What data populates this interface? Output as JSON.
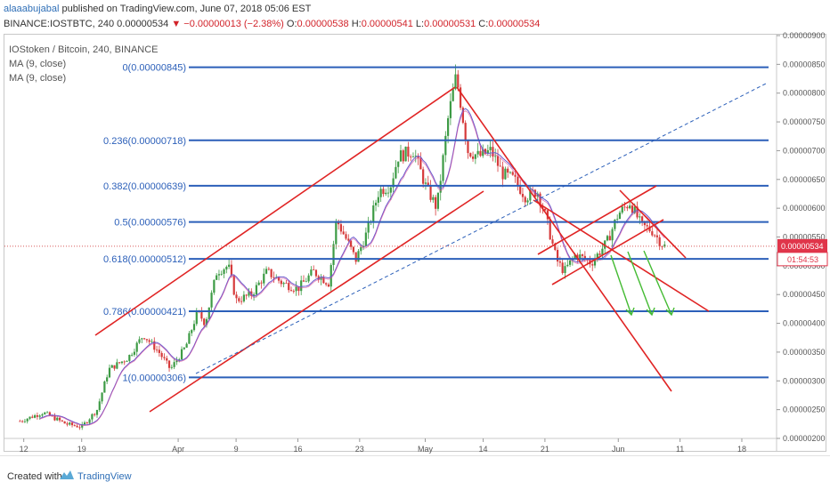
{
  "header": {
    "author": "alaaabujabal",
    "published_text": "published on TradingView.com, June 07, 2018 05:06 EST",
    "symbol_line": "BINANCE:IOSTBTC, 240",
    "last": "0.00000534",
    "down_arrow": "▼",
    "change": "−0.00000013 (−2.38%)",
    "o_label": "O:",
    "o_value": "0.00000538",
    "h_label": "H:",
    "h_value": "0.00000541",
    "l_label": "L:",
    "l_value": "0.00000531",
    "c_label": "C:",
    "c_value": "0.00000534"
  },
  "legend": {
    "title": "IOStoken / Bitcoin, 240, BINANCE",
    "ma1": "MA (9, close)",
    "ma2": "MA (9, close)"
  },
  "chart_data": {
    "type": "candlestick",
    "pair": "IOSTBTC",
    "timeframe": "240",
    "y_axis": {
      "min": 2e-06,
      "max": 9e-06,
      "ticks": [
        "0.00000200",
        "0.00000250",
        "0.00000300",
        "0.00000350",
        "0.00000400",
        "0.00000450",
        "0.00000500",
        "0.00000550",
        "0.00000600",
        "0.00000650",
        "0.00000700",
        "0.00000750",
        "0.00000800",
        "0.00000850",
        "0.00000900"
      ]
    },
    "x_ticks": [
      {
        "label": "12",
        "index": 0
      },
      {
        "label": "19",
        "index": 1
      },
      {
        "label": "Apr",
        "index": 2
      },
      {
        "label": "9",
        "index": 3
      },
      {
        "label": "16",
        "index": 4
      },
      {
        "label": "23",
        "index": 5
      },
      {
        "label": "May",
        "index": 6
      },
      {
        "label": "14",
        "index": 7
      },
      {
        "label": "21",
        "index": 8
      },
      {
        "label": "Jun",
        "index": 9
      },
      {
        "label": "11",
        "index": 10
      },
      {
        "label": "18",
        "index": 11
      }
    ],
    "fib_levels": [
      {
        "ratio": "0",
        "price": "0.00000845",
        "value": 8.45e-06,
        "label": "0(0.00000845)"
      },
      {
        "ratio": "0.236",
        "price": "0.00000718",
        "value": 7.18e-06,
        "label": "0.236(0.00000718)"
      },
      {
        "ratio": "0.382",
        "price": "0.00000639",
        "value": 6.39e-06,
        "label": "0.382(0.00000639)"
      },
      {
        "ratio": "0.5",
        "price": "0.00000576",
        "value": 5.76e-06,
        "label": "0.5(0.00000576)"
      },
      {
        "ratio": "0.618",
        "price": "0.00000512",
        "value": 5.12e-06,
        "label": "0.618(0.00000512)"
      },
      {
        "ratio": "0.786",
        "price": "0.00000421",
        "value": 4.21e-06,
        "label": "0.786(0.00000421)"
      },
      {
        "ratio": "1",
        "price": "0.00000306",
        "value": 3.06e-06,
        "label": "1(0.00000306)"
      }
    ],
    "last_price": {
      "value": 5.34e-06,
      "label": "0.00000534",
      "countdown": "01:54:53"
    },
    "price_path": [
      [
        0.02,
        2.3e-06
      ],
      [
        0.05,
        2.45e-06
      ],
      [
        0.08,
        2.25e-06
      ],
      [
        0.1,
        2.2e-06
      ],
      [
        0.12,
        2.5e-06
      ],
      [
        0.135,
        3.2e-06
      ],
      [
        0.16,
        3.4e-06
      ],
      [
        0.18,
        3.8e-06
      ],
      [
        0.2,
        3.5e-06
      ],
      [
        0.215,
        3.2e-06
      ],
      [
        0.235,
        3.6e-06
      ],
      [
        0.25,
        4.2e-06
      ],
      [
        0.26,
        4e-06
      ],
      [
        0.275,
        4.9e-06
      ],
      [
        0.29,
        5e-06
      ],
      [
        0.3,
        4.4e-06
      ],
      [
        0.32,
        4.5e-06
      ],
      [
        0.34,
        4.9e-06
      ],
      [
        0.36,
        4.7e-06
      ],
      [
        0.38,
        4.6e-06
      ],
      [
        0.4,
        4.9e-06
      ],
      [
        0.42,
        4.7e-06
      ],
      [
        0.43,
        5.8e-06
      ],
      [
        0.445,
        5.4e-06
      ],
      [
        0.455,
        5.1e-06
      ],
      [
        0.47,
        5.6e-06
      ],
      [
        0.485,
        6.3e-06
      ],
      [
        0.5,
        6.4e-06
      ],
      [
        0.51,
        6.9e-06
      ],
      [
        0.53,
        7e-06
      ],
      [
        0.545,
        6.4e-06
      ],
      [
        0.56,
        6e-06
      ],
      [
        0.575,
        7.6e-06
      ],
      [
        0.585,
        8.3e-06
      ],
      [
        0.59,
        7.9e-06
      ],
      [
        0.6,
        7e-06
      ],
      [
        0.615,
        6.9e-06
      ],
      [
        0.63,
        7e-06
      ],
      [
        0.645,
        6.6e-06
      ],
      [
        0.66,
        6.5e-06
      ],
      [
        0.675,
        6.2e-06
      ],
      [
        0.69,
        6.3e-06
      ],
      [
        0.7,
        5.9e-06
      ],
      [
        0.715,
        5.1e-06
      ],
      [
        0.725,
        4.9e-06
      ],
      [
        0.74,
        5.2e-06
      ],
      [
        0.76,
        5.05e-06
      ],
      [
        0.78,
        5.4e-06
      ],
      [
        0.795,
        5.9e-06
      ],
      [
        0.81,
        6.1e-06
      ],
      [
        0.825,
        5.7e-06
      ],
      [
        0.84,
        5.6e-06
      ],
      [
        0.85,
        5.4e-06
      ],
      [
        0.855,
        5.34e-06
      ]
    ],
    "x_scale": {
      "min": 0,
      "max": 1
    },
    "tick_positions": [
      0.025,
      0.1,
      0.225,
      0.3,
      0.38,
      0.46,
      0.545,
      0.62,
      0.7,
      0.795,
      0.875,
      0.955
    ]
  },
  "footer": {
    "created_with": "Created with",
    "brand": "TradingView"
  },
  "colors": {
    "fib": "#2b5fb9",
    "trend": "#e02424",
    "arrow": "#44bb33",
    "up": "#3d9b45",
    "down": "#d63a3a",
    "ma": "#6a5acd",
    "price_label_bg": "#e0354a",
    "text": "#333333",
    "dotted": "#d75959"
  }
}
